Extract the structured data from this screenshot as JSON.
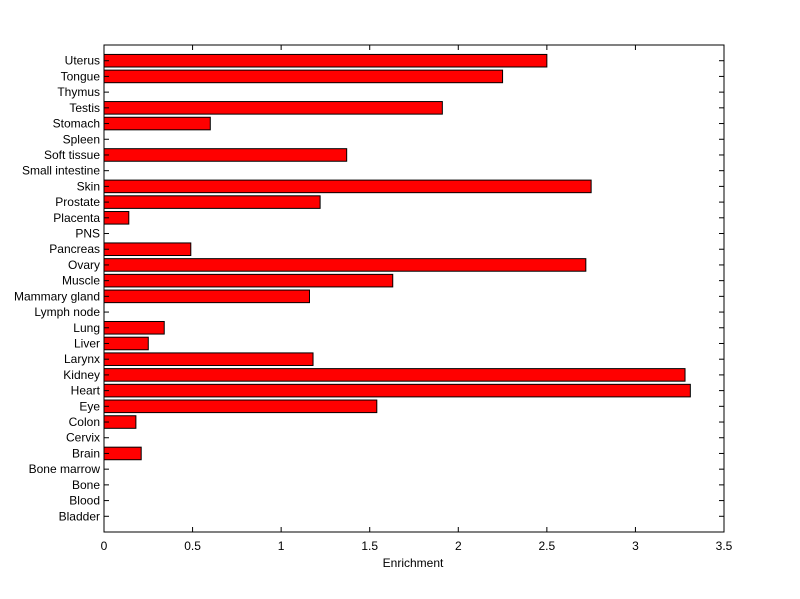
{
  "chart_data": {
    "type": "bar",
    "orientation": "horizontal",
    "title": "",
    "xlabel": "Enrichment",
    "ylabel": "",
    "xlim": [
      0,
      3.5
    ],
    "xticks": [
      "0",
      "0.5",
      "1",
      "1.5",
      "2",
      "2.5",
      "3",
      "3.5"
    ],
    "grid": false,
    "bar_color": "#ff0000",
    "edge_color": "#000000",
    "categories": [
      "Uterus",
      "Tongue",
      "Thymus",
      "Testis",
      "Stomach",
      "Spleen",
      "Soft tissue",
      "Small intestine",
      "Skin",
      "Prostate",
      "Placenta",
      "PNS",
      "Pancreas",
      "Ovary",
      "Muscle",
      "Mammary gland",
      "Lymph node",
      "Lung",
      "Liver",
      "Larynx",
      "Kidney",
      "Heart",
      "Eye",
      "Colon",
      "Cervix",
      "Brain",
      "Bone marrow",
      "Bone",
      "Blood",
      "Bladder"
    ],
    "values": [
      2.5,
      2.25,
      0,
      1.91,
      0.6,
      0,
      1.37,
      0,
      2.75,
      1.22,
      0.14,
      0,
      0.49,
      2.72,
      1.63,
      1.16,
      0,
      0.34,
      0.25,
      1.18,
      3.28,
      3.31,
      1.54,
      0.18,
      0,
      0.21,
      0,
      0,
      0,
      0
    ]
  }
}
